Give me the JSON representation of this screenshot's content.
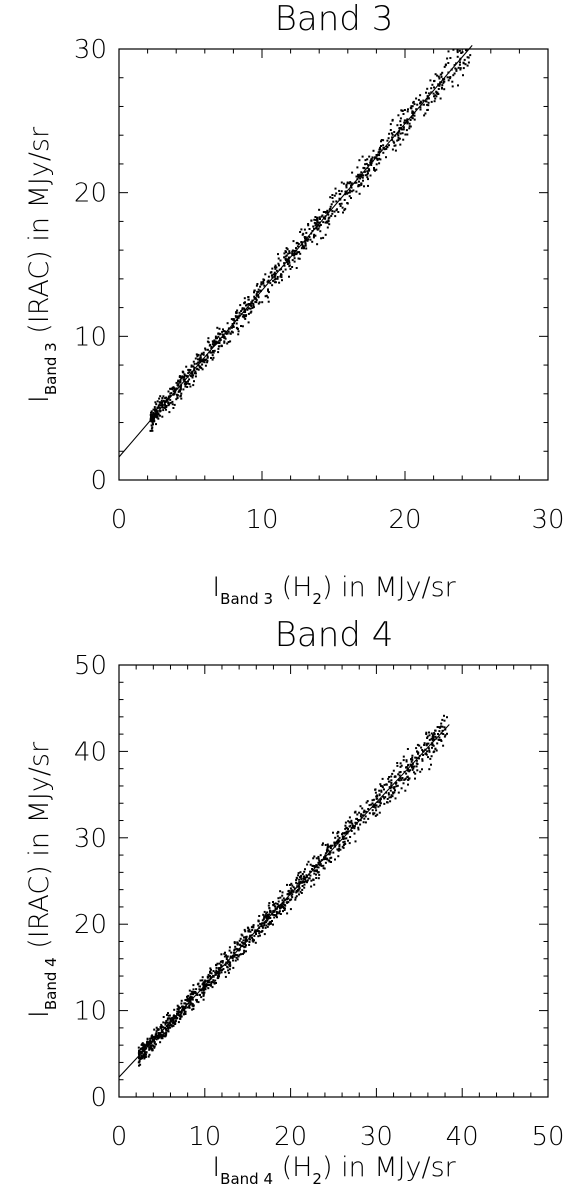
{
  "chart_data": [
    {
      "type": "scatter",
      "title": "Band 3",
      "xlabel": {
        "main": "I",
        "sub": "Band 3",
        "rest": " (H",
        "rest_sub": "2",
        "tail": ") in MJy/sr"
      },
      "ylabel": {
        "main": "I",
        "sub": "Band 3",
        "rest": " (IRAC) in MJy/sr"
      },
      "xlim": [
        0,
        30
      ],
      "ylim": [
        0,
        30
      ],
      "xticks": [
        0,
        10,
        20,
        30
      ],
      "yticks": [
        0,
        10,
        20,
        30
      ],
      "minor_step": 2,
      "grid": false,
      "fit_line": {
        "slope": 1.16,
        "intercept": 1.6,
        "x_range": [
          0,
          24.7
        ]
      },
      "points": {
        "x_range": [
          2.2,
          24.6
        ],
        "n": 1100,
        "scatter": 0.55,
        "seed": 7
      }
    },
    {
      "type": "scatter",
      "title": "Band 4",
      "xlabel": {
        "main": "I",
        "sub": "Band 4",
        "rest": " (H",
        "rest_sub": "2",
        "tail": ") in MJy/sr"
      },
      "ylabel": {
        "main": "I",
        "sub": "Band 4",
        "rest": " (IRAC) in MJy/sr"
      },
      "xlim": [
        0,
        50
      ],
      "ylim": [
        0,
        50
      ],
      "xticks": [
        0,
        10,
        20,
        30,
        40,
        50
      ],
      "yticks": [
        0,
        10,
        20,
        30,
        40,
        50
      ],
      "minor_step": 2,
      "grid": false,
      "fit_line": {
        "slope": 1.06,
        "intercept": 2.3,
        "x_range": [
          0,
          38.5
        ]
      },
      "points": {
        "x_range": [
          2.3,
          38.3
        ],
        "n": 1300,
        "scatter": 0.7,
        "seed": 13
      }
    }
  ]
}
